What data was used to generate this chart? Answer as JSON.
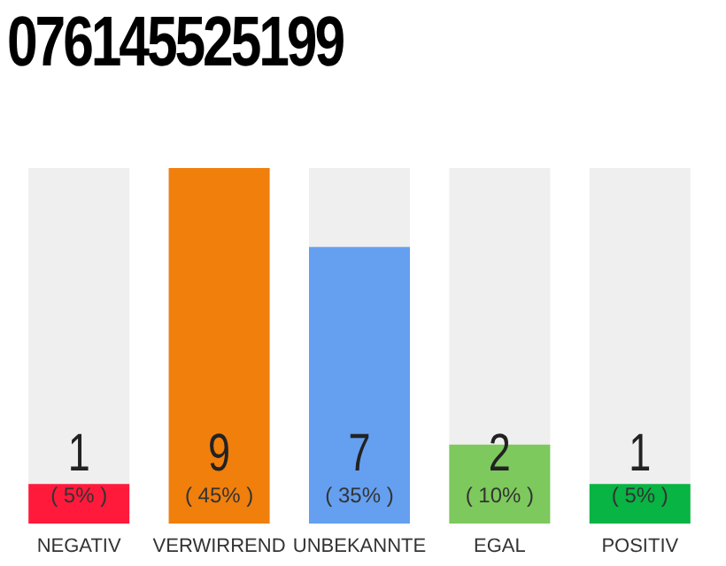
{
  "chart_data": {
    "type": "bar",
    "title": "076145525199",
    "categories": [
      "NEGATIV",
      "VERWIRREND",
      "UNBEKANNTE",
      "EGAL",
      "POSITIV"
    ],
    "values": [
      1,
      9,
      7,
      2,
      1
    ],
    "colors": [
      "#ff1a3c",
      "#f07f0c",
      "#659ff0",
      "#7dc95d",
      "#08b443"
    ],
    "annotations": [
      "( 5% )",
      "( 45% )",
      "( 35% )",
      "( 10% )",
      "( 5% )"
    ],
    "data_labels": true
  }
}
